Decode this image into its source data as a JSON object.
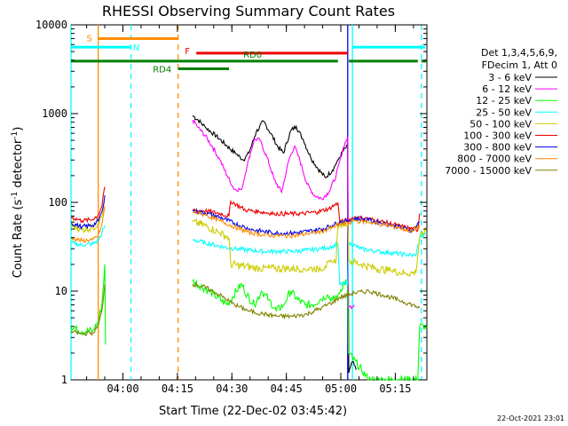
{
  "chart_data": {
    "type": "line",
    "title": "RHESSI Observing Summary Count Rates",
    "xlabel": "Start Time (22-Dec-02 03:45:42)",
    "ylabel": "Count Rate (s⁻¹ detector⁻¹)",
    "ylabel_main": "Count Rate (s",
    "ylabel_exp1": "-1",
    "ylabel_mid": " detector",
    "ylabel_exp2": "-1",
    "ylabel_end": ")",
    "yscale": "log",
    "ylim": [
      1,
      10000
    ],
    "xlim_minutes": [
      0,
      98
    ],
    "y_ticks": [
      {
        "value": 10000,
        "label": "10000"
      },
      {
        "value": 1000,
        "label": "1000"
      },
      {
        "value": 100,
        "label": "100"
      },
      {
        "value": 10,
        "label": "10"
      },
      {
        "value": 1,
        "label": "1"
      }
    ],
    "x_ticks": [
      {
        "minute": 14.3,
        "label": "04:00"
      },
      {
        "minute": 29.3,
        "label": "04:15"
      },
      {
        "minute": 44.3,
        "label": "04:30"
      },
      {
        "minute": 59.3,
        "label": "04:45"
      },
      {
        "minute": 74.3,
        "label": "05:00"
      },
      {
        "minute": 89.3,
        "label": "05:15"
      }
    ],
    "legend_header": [
      "Det 1,3,4,5,6,9,",
      "FDecim 1, Att 0"
    ],
    "series": [
      {
        "name": "3 - 6 keV",
        "color": "#000000",
        "points": [
          [
            33.5,
            950
          ],
          [
            35,
            850
          ],
          [
            37,
            700
          ],
          [
            40,
            560
          ],
          [
            43,
            430
          ],
          [
            45.5,
            350
          ],
          [
            47.5,
            300
          ],
          [
            49,
            360
          ],
          [
            51,
            620
          ],
          [
            53,
            820
          ],
          [
            55,
            600
          ],
          [
            57,
            420
          ],
          [
            58.5,
            360
          ],
          [
            60.5,
            640
          ],
          [
            62,
            720
          ],
          [
            64,
            500
          ],
          [
            66,
            320
          ],
          [
            68,
            240
          ],
          [
            70,
            190
          ],
          [
            72,
            230
          ],
          [
            73.5,
            300
          ],
          [
            75,
            380
          ],
          [
            76.2,
            430
          ],
          [
            76.5,
            1.2
          ],
          [
            77.5,
            1.6
          ],
          [
            78.5,
            1.3
          ]
        ]
      },
      {
        "name": "6 - 12 keV",
        "color": "#ff00ff",
        "points": [
          [
            33.5,
            850
          ],
          [
            35,
            700
          ],
          [
            37,
            560
          ],
          [
            39,
            420
          ],
          [
            41,
            300
          ],
          [
            43,
            200
          ],
          [
            45,
            140
          ],
          [
            47,
            140
          ],
          [
            48.5,
            260
          ],
          [
            50.5,
            520
          ],
          [
            52,
            500
          ],
          [
            54,
            320
          ],
          [
            56,
            180
          ],
          [
            58,
            130
          ],
          [
            60,
            300
          ],
          [
            61.5,
            430
          ],
          [
            63,
            300
          ],
          [
            65,
            160
          ],
          [
            67,
            120
          ],
          [
            69,
            110
          ],
          [
            71,
            130
          ],
          [
            73,
            200
          ],
          [
            75,
            420
          ],
          [
            76.2,
            550
          ],
          [
            76.4,
            6.5
          ],
          [
            78,
            7
          ]
        ]
      },
      {
        "name": "12 - 25 keV",
        "color": "#00ff00",
        "points": [
          [
            0,
            4
          ],
          [
            3,
            3.5
          ],
          [
            6,
            3.6
          ],
          [
            7.5,
            4.5
          ],
          [
            8.5,
            7
          ],
          [
            9.3,
            20
          ],
          [
            9.5,
            2.5
          ],
          [
            33.5,
            13
          ],
          [
            38,
            10
          ],
          [
            43,
            7
          ],
          [
            45.5,
            10
          ],
          [
            47,
            12
          ],
          [
            48.5,
            9
          ],
          [
            50.5,
            7
          ],
          [
            52.5,
            10
          ],
          [
            54.5,
            8
          ],
          [
            56.5,
            6
          ],
          [
            58.5,
            7
          ],
          [
            60.5,
            10
          ],
          [
            62.5,
            8
          ],
          [
            64.5,
            7
          ],
          [
            66.5,
            7
          ],
          [
            68.5,
            8
          ],
          [
            70.5,
            9
          ],
          [
            72,
            8
          ],
          [
            73.5,
            9
          ],
          [
            75,
            12
          ],
          [
            76.2,
            13
          ],
          [
            76.4,
            2
          ],
          [
            80,
            1.3
          ],
          [
            82,
            1
          ],
          [
            95.5,
            1
          ],
          [
            96,
            4
          ],
          [
            98,
            4
          ]
        ]
      },
      {
        "name": "25 - 50 keV",
        "color": "#00ffff",
        "points": [
          [
            0,
            35
          ],
          [
            3,
            33
          ],
          [
            6,
            34
          ],
          [
            7.5,
            37
          ],
          [
            8.5,
            45
          ],
          [
            9.3,
            55
          ],
          [
            33.5,
            38
          ],
          [
            37,
            35
          ],
          [
            41,
            32
          ],
          [
            45,
            30
          ],
          [
            49,
            29
          ],
          [
            53,
            28
          ],
          [
            57,
            28
          ],
          [
            61,
            28
          ],
          [
            65,
            29
          ],
          [
            69,
            30
          ],
          [
            72,
            32
          ],
          [
            73.5,
            34
          ],
          [
            74,
            12
          ],
          [
            76.2,
            12
          ],
          [
            76.5,
            35
          ],
          [
            80,
            30
          ],
          [
            84,
            28
          ],
          [
            88,
            27
          ],
          [
            92,
            26
          ],
          [
            95,
            25
          ],
          [
            96,
            40
          ],
          [
            98,
            45
          ]
        ]
      },
      {
        "name": "50 - 100 keV",
        "color": "#cccc00",
        "points": [
          [
            0,
            55
          ],
          [
            3,
            50
          ],
          [
            6,
            52
          ],
          [
            7.5,
            58
          ],
          [
            8.5,
            70
          ],
          [
            9.3,
            100
          ],
          [
            33.5,
            60
          ],
          [
            37,
            55
          ],
          [
            41,
            45
          ],
          [
            43.5,
            40
          ],
          [
            44,
            20
          ],
          [
            48,
            19
          ],
          [
            52,
            18
          ],
          [
            56,
            18
          ],
          [
            60,
            18
          ],
          [
            64,
            18
          ],
          [
            68,
            18
          ],
          [
            70,
            19
          ],
          [
            72,
            21
          ],
          [
            73,
            22
          ],
          [
            73.5,
            55
          ],
          [
            76.2,
            60
          ],
          [
            76.5,
            22
          ],
          [
            80,
            20
          ],
          [
            84,
            18
          ],
          [
            88,
            17
          ],
          [
            92,
            16
          ],
          [
            95,
            16
          ],
          [
            96,
            40
          ],
          [
            98,
            50
          ]
        ]
      },
      {
        "name": "100 - 300 keV",
        "color": "#ee0000",
        "points": [
          [
            0,
            68
          ],
          [
            3,
            62
          ],
          [
            6,
            64
          ],
          [
            7.5,
            72
          ],
          [
            8.5,
            90
          ],
          [
            9.3,
            150
          ],
          [
            33.5,
            82
          ],
          [
            37,
            80
          ],
          [
            41,
            75
          ],
          [
            43.5,
            70
          ],
          [
            44,
            103
          ],
          [
            48,
            82
          ],
          [
            52,
            78
          ],
          [
            56,
            75
          ],
          [
            60,
            74
          ],
          [
            64,
            75
          ],
          [
            68,
            78
          ],
          [
            71,
            85
          ],
          [
            73.5,
            98
          ],
          [
            74,
            60
          ],
          [
            76.2,
            63
          ],
          [
            78,
            68
          ],
          [
            82,
            65
          ],
          [
            86,
            60
          ],
          [
            90,
            55
          ],
          [
            94,
            50
          ],
          [
            95.5,
            48
          ],
          [
            96,
            75
          ]
        ]
      },
      {
        "name": "300 - 800 keV",
        "color": "#0000ee",
        "points": [
          [
            0,
            58
          ],
          [
            3,
            53
          ],
          [
            6,
            55
          ],
          [
            7.5,
            62
          ],
          [
            8.5,
            78
          ],
          [
            9.3,
            120
          ],
          [
            33.5,
            80
          ],
          [
            37,
            76
          ],
          [
            41,
            68
          ],
          [
            45,
            58
          ],
          [
            49,
            50
          ],
          [
            53,
            47
          ],
          [
            57,
            45
          ],
          [
            61,
            45
          ],
          [
            65,
            47
          ],
          [
            69,
            50
          ],
          [
            72,
            55
          ],
          [
            74,
            60
          ],
          [
            76.2,
            62
          ],
          [
            78,
            66
          ],
          [
            82,
            63
          ],
          [
            86,
            58
          ],
          [
            90,
            53
          ],
          [
            94,
            48
          ],
          [
            96,
            60
          ]
        ]
      },
      {
        "name": "800 - 7000 keV",
        "color": "#ff8c00",
        "points": [
          [
            0,
            40
          ],
          [
            3,
            37
          ],
          [
            6,
            38
          ],
          [
            7.5,
            42
          ],
          [
            8.5,
            55
          ],
          [
            9.3,
            90
          ],
          [
            33.5,
            78
          ],
          [
            37,
            72
          ],
          [
            41,
            62
          ],
          [
            45,
            53
          ],
          [
            49,
            46
          ],
          [
            53,
            43
          ],
          [
            57,
            42
          ],
          [
            61,
            42
          ],
          [
            65,
            44
          ],
          [
            69,
            47
          ],
          [
            72,
            52
          ],
          [
            74,
            57
          ],
          [
            76.2,
            58
          ],
          [
            78,
            62
          ],
          [
            82,
            60
          ],
          [
            86,
            56
          ],
          [
            90,
            52
          ],
          [
            94,
            47
          ],
          [
            96,
            55
          ]
        ]
      },
      {
        "name": "7000 - 15000 keV",
        "color": "#808000",
        "points": [
          [
            0,
            3.5
          ],
          [
            3,
            3.3
          ],
          [
            6,
            3.4
          ],
          [
            7.5,
            4
          ],
          [
            8.5,
            6
          ],
          [
            9.3,
            12
          ],
          [
            33.5,
            12
          ],
          [
            37,
            11
          ],
          [
            41,
            9
          ],
          [
            45,
            7
          ],
          [
            49,
            6
          ],
          [
            53,
            5.5
          ],
          [
            57,
            5.2
          ],
          [
            61,
            5.2
          ],
          [
            65,
            5.5
          ],
          [
            69,
            6.5
          ],
          [
            72,
            7.5
          ],
          [
            74,
            8.5
          ],
          [
            76.2,
            9
          ],
          [
            78,
            9.5
          ],
          [
            82,
            10
          ],
          [
            86,
            9
          ],
          [
            90,
            8
          ],
          [
            94,
            7
          ],
          [
            96,
            6.5
          ]
        ]
      }
    ],
    "annotations": {
      "S": {
        "label": "S",
        "color": "#ff8c00",
        "bars": [
          [
            7.5,
            29.5,
            7000
          ]
        ]
      },
      "N": {
        "label": "N",
        "color": "#00ffff",
        "bars": [
          [
            0,
            16.5,
            5600
          ],
          [
            77.5,
            97.5,
            5600
          ]
        ]
      },
      "F": {
        "label": "F",
        "color": "#ee0000",
        "bars": [
          [
            34.5,
            76.2,
            4800
          ]
        ]
      },
      "RD0": {
        "label": "RD0",
        "color": "#008000",
        "bars": [
          [
            0,
            73.5,
            3900
          ],
          [
            76.5,
            95.5,
            3900
          ],
          [
            96.5,
            98,
            3900
          ]
        ]
      },
      "RD4": {
        "label": "RD4",
        "color": "#008000",
        "bars": [
          [
            29.5,
            43.5,
            3200
          ]
        ]
      },
      "vlines": [
        {
          "minute": 0,
          "color": "#00ffff",
          "dash": false
        },
        {
          "minute": 7.5,
          "color": "#ff8c00",
          "dash": false
        },
        {
          "minute": 16.5,
          "color": "#00ffff",
          "dash": true
        },
        {
          "minute": 29.5,
          "color": "#ff8c00",
          "dash": true
        },
        {
          "minute": 76.2,
          "color": "#0000ee",
          "dash": false
        },
        {
          "minute": 77.5,
          "color": "#00ffff",
          "dash": false
        },
        {
          "minute": 96.5,
          "color": "#00ffff",
          "dash": true
        }
      ]
    }
  },
  "timestamp": "22-Oct-2021 23:01"
}
